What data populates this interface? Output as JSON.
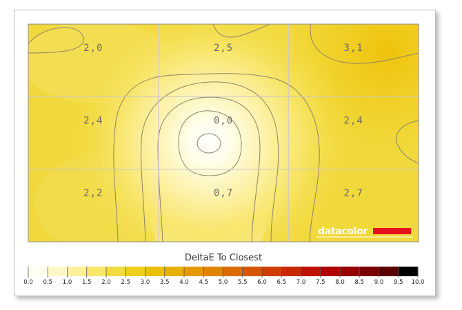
{
  "chart_data": {
    "type": "heatmap",
    "title": "DeltaE To Closest",
    "grid": {
      "rows": 3,
      "cols": 3
    },
    "cells": [
      [
        {
          "label": "2,0",
          "value": 2.0
        },
        {
          "label": "2,5",
          "value": 2.5
        },
        {
          "label": "3,1",
          "value": 3.1
        }
      ],
      [
        {
          "label": "2,4",
          "value": 2.4
        },
        {
          "label": "0,0",
          "value": 0.0
        },
        {
          "label": "2,4",
          "value": 2.4
        }
      ],
      [
        {
          "label": "2,2",
          "value": 2.2
        },
        {
          "label": "0,7",
          "value": 0.7
        },
        {
          "label": "2,7",
          "value": 2.7
        }
      ]
    ],
    "scale": {
      "min": 0.0,
      "max": 10.0,
      "step": 0.5,
      "ticks": [
        "0.0",
        "0.5",
        "1.0",
        "1.5",
        "2.0",
        "2.5",
        "3.0",
        "3.5",
        "4.0",
        "4.5",
        "5.0",
        "5.5",
        "6.0",
        "6.5",
        "7.0",
        "7.5",
        "8.0",
        "8.5",
        "9.0",
        "9.5",
        "10.0"
      ],
      "colors": [
        "#fffff0",
        "#fff8c6",
        "#fdf09b",
        "#f9e66a",
        "#f3da3e",
        "#efcf1a",
        "#ebc000",
        "#e8af00",
        "#e49900",
        "#e08300",
        "#db6c00",
        "#d55500",
        "#cf3e00",
        "#c92800",
        "#c01200",
        "#b00000",
        "#960000",
        "#7a0000",
        "#5a0000",
        "#380000",
        "#000000"
      ]
    },
    "grid_lines": true,
    "legend": "bottom"
  },
  "logo": {
    "text": "datacolor",
    "bar_color": "#e3121c"
  }
}
